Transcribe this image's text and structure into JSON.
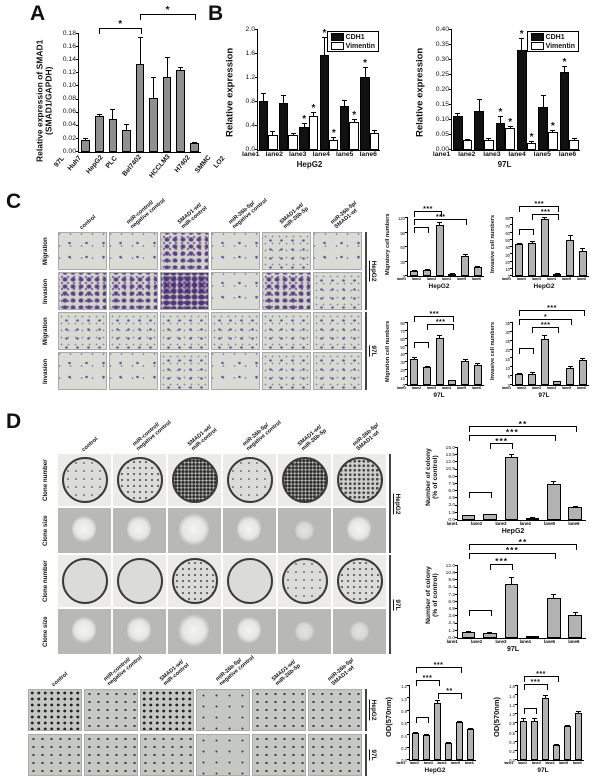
{
  "panel_labels": {
    "a": "A",
    "b": "B",
    "c": "C",
    "d": "D"
  },
  "colors": {
    "gray_bar": "#9a9a9a",
    "cdh1_bar": "#111111",
    "vimentin_bar": "#ffffff",
    "stain_purple": "#6f4f96"
  },
  "treatment_headers": [
    "control",
    "miR-control/\nnegative control",
    "SMAD1-wt/\nmiR-control",
    "miR-26b-5p/\nnegative control",
    "SMAD1-wt/\nmiR-26b-5p",
    "miR-26b-5p/\nSMAD1-wt"
  ],
  "panel_c": {
    "rows": [
      {
        "label": "Migration",
        "type": "purple",
        "densities": [
          "low",
          "low",
          "high",
          "low",
          "med",
          "low"
        ]
      },
      {
        "label": "Invasion",
        "type": "purple",
        "densities": [
          "high",
          "high",
          "vhigh",
          "low",
          "high",
          "med"
        ]
      },
      {
        "label": "Migration",
        "type": "purple",
        "densities": [
          "med",
          "med",
          "med",
          "med",
          "med",
          "med"
        ]
      },
      {
        "label": "Invasion",
        "type": "purple",
        "densities": [
          "low",
          "low",
          "med",
          "low",
          "med",
          "med"
        ]
      }
    ],
    "groups": [
      {
        "label": "HepG2",
        "from": 0,
        "to": 1
      },
      {
        "label": "97L",
        "from": 2,
        "to": 3
      }
    ]
  },
  "panel_d": {
    "rows": [
      {
        "label": "Clone number",
        "type": "dish",
        "densities": [
          "low",
          "med",
          "vhigh",
          "low",
          "vhigh",
          "high"
        ]
      },
      {
        "label": "Clone size",
        "type": "colony",
        "densities": [
          "med",
          "med",
          "high",
          "med",
          "low",
          "med"
        ]
      },
      {
        "label": "Clone number",
        "type": "dish",
        "densities": [
          "none",
          "none",
          "med",
          "none",
          "low",
          "med"
        ]
      },
      {
        "label": "Clone size",
        "type": "colony",
        "densities": [
          "med",
          "med",
          "high",
          "med",
          "low",
          "low"
        ]
      }
    ],
    "groups": [
      {
        "label": "HepG2",
        "from": 0,
        "to": 1
      },
      {
        "label": "97L",
        "from": 2,
        "to": 3
      }
    ]
  },
  "panel_e": {
    "rows": [
      {
        "label": "",
        "type": "mtt",
        "densities": [
          "high",
          "med",
          "high",
          "low",
          "med",
          "med"
        ]
      },
      {
        "label": "",
        "type": "mtt",
        "densities": [
          "med",
          "med",
          "med",
          "low",
          "med",
          "med"
        ]
      }
    ],
    "groups": [
      {
        "label": "HepG2",
        "from": 0,
        "to": 0
      },
      {
        "label": "97L",
        "from": 1,
        "to": 1
      }
    ]
  },
  "chart_data": [
    {
      "id": "A",
      "type": "bar",
      "ylabel": "Relative expression of SMAD1\n(SMAD1/GAPDH)",
      "xlabel": "",
      "categories": [
        "97L",
        "Huh7",
        "HepG2",
        "PLC",
        "Bel7402",
        "HCCLM3",
        "H7402",
        "SMMC",
        "LO2"
      ],
      "series": [
        {
          "name": "SMAD1",
          "color": "#8f8f8f",
          "values": [
            0.018,
            0.055,
            0.05,
            0.033,
            0.135,
            0.082,
            0.115,
            0.125,
            0.013
          ],
          "errors": [
            0.003,
            0.003,
            0.015,
            0.009,
            0.04,
            0.033,
            0.03,
            0.004,
            0.002
          ],
          "stars": []
        }
      ],
      "ylim": [
        0,
        0.18
      ],
      "yticks": [
        "0.00",
        "0.02",
        "0.04",
        "0.06",
        "0.08",
        "0.10",
        "0.12",
        "0.14",
        "0.16",
        "0.18"
      ],
      "rotate_xticks": true,
      "annotations": [
        {
          "x1": 1,
          "x2": 4,
          "y": 1.0,
          "label": "*"
        },
        {
          "x1": 4,
          "x2": 8,
          "y": 1.12,
          "label": "*"
        }
      ]
    },
    {
      "id": "B1",
      "type": "grouped-bar",
      "ylabel": "Relative expression",
      "xlabel": "HepG2",
      "categories": [
        "lane1",
        "lane2",
        "lane3",
        "lane4",
        "lane5",
        "lane6"
      ],
      "series": [
        {
          "name": "CDH1",
          "color": "#111111",
          "values": [
            0.82,
            0.78,
            0.39,
            1.58,
            0.73,
            1.21
          ],
          "errors": [
            0.13,
            0.13,
            0.06,
            0.3,
            0.11,
            0.17
          ],
          "stars": [
            2,
            3,
            5
          ]
        },
        {
          "name": "Vimentin",
          "color": "#ffffff",
          "values": [
            0.25,
            0.25,
            0.57,
            0.17,
            0.46,
            0.28
          ],
          "errors": [
            0.06,
            0.03,
            0.07,
            0.04,
            0.05,
            0.06
          ],
          "stars": [
            2,
            3,
            4
          ]
        }
      ],
      "ylim": [
        0,
        2.0
      ],
      "yticks": [
        "0.0",
        "0.4",
        "0.8",
        "1.2",
        "1.6",
        "2.0"
      ],
      "legend": true,
      "annotations": []
    },
    {
      "id": "B2",
      "type": "grouped-bar",
      "ylabel": "Relative expression",
      "xlabel": "97L",
      "categories": [
        "lane1",
        "lane2",
        "lane3",
        "lane4",
        "lane5",
        "lane6"
      ],
      "series": [
        {
          "name": "CDH1",
          "color": "#111111",
          "values": [
            0.115,
            0.13,
            0.09,
            0.335,
            0.145,
            0.26
          ],
          "errors": [
            0.01,
            0.04,
            0.025,
            0.04,
            0.04,
            0.02
          ],
          "stars": [
            2,
            3,
            5
          ]
        },
        {
          "name": "Vimentin",
          "color": "#ffffff",
          "values": [
            0.032,
            0.035,
            0.075,
            0.025,
            0.06,
            0.035
          ],
          "errors": [
            0.004,
            0.005,
            0.006,
            0.004,
            0.006,
            0.005
          ],
          "stars": [
            2,
            3,
            4
          ]
        }
      ],
      "ylim": [
        0,
        0.4
      ],
      "yticks": [
        "0.00",
        "0.05",
        "0.10",
        "0.15",
        "0.20",
        "0.25",
        "0.30",
        "0.35",
        "0.40"
      ],
      "legend": true,
      "annotations": []
    },
    {
      "id": "C1",
      "type": "bar",
      "ylabel": "Migratory cell numbers",
      "xlabel": "HepG2",
      "categories": [
        "lane1",
        "lane2",
        "lane3",
        "lane4",
        "lane5",
        "lane6"
      ],
      "series": [
        {
          "name": "cells",
          "color": "#b3b3b3",
          "values": [
            10,
            13,
            105,
            5,
            42,
            18
          ],
          "errors": [
            2,
            2,
            7,
            1,
            3,
            2
          ],
          "stars": []
        }
      ],
      "ylim": [
        0,
        120
      ],
      "yticks": [
        "0",
        "30",
        "60",
        "90",
        "120"
      ],
      "annotations": [
        {
          "x1": 0,
          "x2": 1,
          "y": 0.74,
          "label": ""
        },
        {
          "x1": 0,
          "x2": 2,
          "y": 1.02,
          "label": "***"
        },
        {
          "x1": 0,
          "x2": 4,
          "y": 0.88,
          "label": "***"
        }
      ]
    },
    {
      "id": "C2",
      "type": "bar",
      "ylabel": "Invasive cell numbers",
      "xlabel": "HepG2",
      "categories": [
        "lane1",
        "lane2",
        "lane3",
        "lane4",
        "lane5",
        "lane6"
      ],
      "series": [
        {
          "name": "cells",
          "color": "#b3b3b3",
          "values": [
            44,
            45,
            79,
            2,
            50,
            35
          ],
          "errors": [
            2,
            3,
            3,
            1,
            6,
            3
          ],
          "stars": []
        }
      ],
      "ylim": [
        0,
        80
      ],
      "yticks": [
        "0",
        "10",
        "20",
        "30",
        "40",
        "50",
        "60",
        "70",
        "80"
      ],
      "annotations": [
        {
          "x1": 0,
          "x2": 1,
          "y": 0.7,
          "label": ""
        },
        {
          "x1": 0,
          "x2": 3,
          "y": 1.1,
          "label": "***"
        },
        {
          "x1": 1,
          "x2": 3,
          "y": 0.97,
          "label": "***"
        }
      ]
    },
    {
      "id": "C3",
      "type": "bar",
      "ylabel": "Migration cell numbers",
      "xlabel": "97L",
      "categories": [
        "lane1",
        "lane2",
        "lane3",
        "lane4",
        "lane5",
        "lane6"
      ],
      "series": [
        {
          "name": "cells",
          "color": "#b3b3b3",
          "values": [
            34,
            23,
            61,
            6,
            31,
            26
          ],
          "errors": [
            2,
            2,
            3,
            1,
            2,
            2
          ],
          "stars": []
        }
      ],
      "ylim": [
        0,
        80
      ],
      "yticks": [
        "0",
        "10",
        "20",
        "30",
        "40",
        "50",
        "60",
        "70",
        "80"
      ],
      "annotations": [
        {
          "x1": 0,
          "x2": 1,
          "y": 0.6,
          "label": ""
        },
        {
          "x1": 0,
          "x2": 3,
          "y": 1.02,
          "label": "***"
        },
        {
          "x1": 1,
          "x2": 3,
          "y": 0.88,
          "label": "***"
        }
      ]
    },
    {
      "id": "C4",
      "type": "bar",
      "ylabel": "Invasive cell numbers",
      "xlabel": "97L",
      "categories": [
        "lane1",
        "lane2",
        "lane3",
        "lane4",
        "lane5",
        "lane6"
      ],
      "series": [
        {
          "name": "cells",
          "color": "#b3b3b3",
          "values": [
            6,
            6.5,
            26,
            2,
            9.5,
            14
          ],
          "errors": [
            0.8,
            1,
            2.5,
            0.5,
            1,
            1
          ],
          "stars": []
        }
      ],
      "ylim": [
        0,
        35
      ],
      "yticks": [
        "0",
        "5",
        "10",
        "15",
        "20",
        "25",
        "30",
        "35"
      ],
      "annotations": [
        {
          "x1": 0,
          "x2": 1,
          "y": 0.5,
          "label": ""
        },
        {
          "x1": 0,
          "x2": 5,
          "y": 1.12,
          "label": "***"
        },
        {
          "x1": 0,
          "x2": 4,
          "y": 0.97,
          "label": "*"
        },
        {
          "x1": 1,
          "x2": 3,
          "y": 0.84,
          "label": "***"
        }
      ]
    },
    {
      "id": "D1",
      "type": "bar",
      "ylabel": "Number of colony\n(% of control)",
      "xlabel": "HepG2",
      "categories": [
        "lane1",
        "lane2",
        "lane3",
        "lane4",
        "lane5",
        "lane6"
      ],
      "series": [
        {
          "name": "colonies",
          "color": "#b3b3b3",
          "values": [
            1.0,
            1.2,
            13.2,
            0.5,
            7.6,
            2.8
          ],
          "errors": [
            0.1,
            0.15,
            0.5,
            0.1,
            0.5,
            0.2
          ],
          "stars": []
        }
      ],
      "ylim": [
        0,
        15
      ],
      "yticks": [
        "0.0",
        "1.5",
        "3.0",
        "4.5",
        "6.0",
        "7.5",
        "9.0",
        "10.5",
        "12.0",
        "13.5",
        "15.0"
      ],
      "annotations": [
        {
          "x1": 0,
          "x2": 1,
          "y": 0.3,
          "label": ""
        },
        {
          "x1": 0,
          "x2": 5,
          "y": 1.22,
          "label": "**"
        },
        {
          "x1": 0,
          "x2": 4,
          "y": 1.1,
          "label": "***"
        },
        {
          "x1": 1,
          "x2": 2,
          "y": 0.98,
          "label": "***"
        }
      ]
    },
    {
      "id": "D2",
      "type": "bar",
      "ylabel": "Number of colony\n(% of control)",
      "xlabel": "97L",
      "categories": [
        "lane1",
        "lane2",
        "lane3",
        "lane4",
        "lane5",
        "lane6"
      ],
      "series": [
        {
          "name": "colonies",
          "color": "#b3b3b3",
          "values": [
            1.0,
            0.9,
            9.0,
            0.3,
            6.6,
            3.8
          ],
          "errors": [
            0.1,
            0.1,
            1.2,
            0.05,
            0.7,
            0.5
          ],
          "stars": []
        }
      ],
      "ylim": [
        0,
        12
      ],
      "yticks": [
        "0.0",
        "1.2",
        "2.4",
        "3.6",
        "4.8",
        "6.0",
        "7.2",
        "8.4",
        "9.6",
        "10.8",
        "12.0"
      ],
      "annotations": [
        {
          "x1": 0,
          "x2": 1,
          "y": 0.3,
          "label": ""
        },
        {
          "x1": 0,
          "x2": 5,
          "y": 1.22,
          "label": "**"
        },
        {
          "x1": 0,
          "x2": 4,
          "y": 1.1,
          "label": "***"
        },
        {
          "x1": 1,
          "x2": 2,
          "y": 0.95,
          "label": "***"
        }
      ]
    },
    {
      "id": "E1",
      "type": "bar",
      "ylabel": "OD(570nm)",
      "xlabel": "HepG2",
      "categories": [
        "lane1",
        "lane2",
        "lane3",
        "lane4",
        "lane5",
        "lane6"
      ],
      "series": [
        {
          "name": "OD",
          "color": "#b3b3b3",
          "values": [
            0.44,
            0.4,
            0.93,
            0.27,
            0.61,
            0.5
          ],
          "errors": [
            0.02,
            0.02,
            0.05,
            0.02,
            0.02,
            0.02
          ],
          "stars": []
        }
      ],
      "ylim": [
        0,
        1.2
      ],
      "yticks": [
        "0.0",
        "0.2",
        "0.4",
        "0.6",
        "0.8",
        "1.0",
        "1.2"
      ],
      "annotations": [
        {
          "x1": 0,
          "x2": 1,
          "y": 0.5,
          "label": ""
        },
        {
          "x1": 0,
          "x2": 4,
          "y": 1.18,
          "label": "***"
        },
        {
          "x1": 0,
          "x2": 2,
          "y": 1.0,
          "label": "***"
        },
        {
          "x1": 2,
          "x2": 4,
          "y": 0.82,
          "label": "**"
        }
      ]
    },
    {
      "id": "E2",
      "type": "bar",
      "ylabel": "OD(570nm)",
      "xlabel": "97L",
      "categories": [
        "lane1",
        "lane2",
        "lane3",
        "lane4",
        "lane5",
        "lane6"
      ],
      "series": [
        {
          "name": "OD",
          "color": "#b3b3b3",
          "values": [
            0.85,
            0.85,
            1.35,
            0.33,
            0.73,
            1.02
          ],
          "errors": [
            0.06,
            0.06,
            0.05,
            0.02,
            0.03,
            0.03
          ],
          "stars": []
        }
      ],
      "ylim": [
        0,
        1.6
      ],
      "yticks": [
        "0.0",
        "0.2",
        "0.4",
        "0.6",
        "0.8",
        "1.0",
        "1.2",
        "1.4",
        "1.6"
      ],
      "annotations": [
        {
          "x1": 0,
          "x2": 1,
          "y": 0.62,
          "label": ""
        },
        {
          "x1": 0,
          "x2": 3,
          "y": 1.06,
          "label": "***"
        },
        {
          "x1": 0,
          "x2": 2,
          "y": 0.94,
          "label": "***"
        }
      ]
    }
  ]
}
